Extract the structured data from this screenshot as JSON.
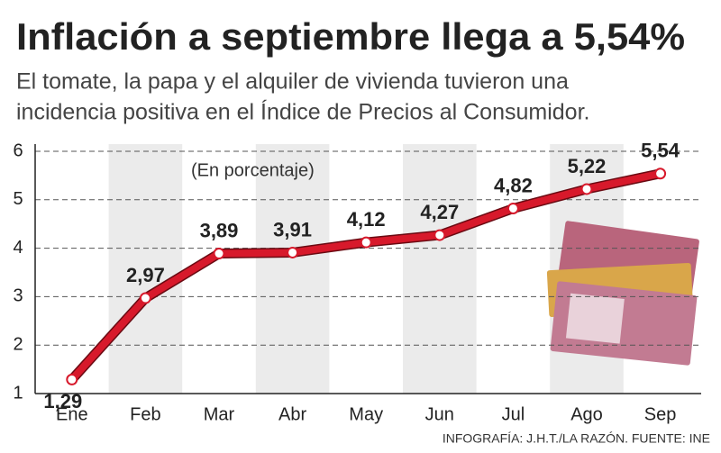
{
  "chart_data": {
    "type": "line",
    "title": "Inflación a septiembre llega a 5,54%",
    "subtitle": [
      "El tomate, la papa y el alquiler de vivienda tuvieron una",
      "incidencia positiva en el Índice de Precios al Consumidor."
    ],
    "annotation": "(En porcentaje)",
    "source": "INFOGRAFÍA: J.H.T./LA RAZÓN. FUENTE: INE",
    "categories": [
      "Ene",
      "Feb",
      "Mar",
      "Abr",
      "May",
      "Jun",
      "Jul",
      "Ago",
      "Sep"
    ],
    "values": [
      1.29,
      2.97,
      3.89,
      3.91,
      4.12,
      4.27,
      4.82,
      5.22,
      5.54
    ],
    "value_labels": [
      "1,29",
      "2,97",
      "3,89",
      "3,91",
      "4,12",
      "4,27",
      "4,82",
      "5,22",
      "5,54"
    ],
    "color": "#d7192b",
    "ylim": [
      1,
      6
    ],
    "yticks": [
      1,
      2,
      3,
      4,
      5,
      6
    ],
    "grid": true
  }
}
